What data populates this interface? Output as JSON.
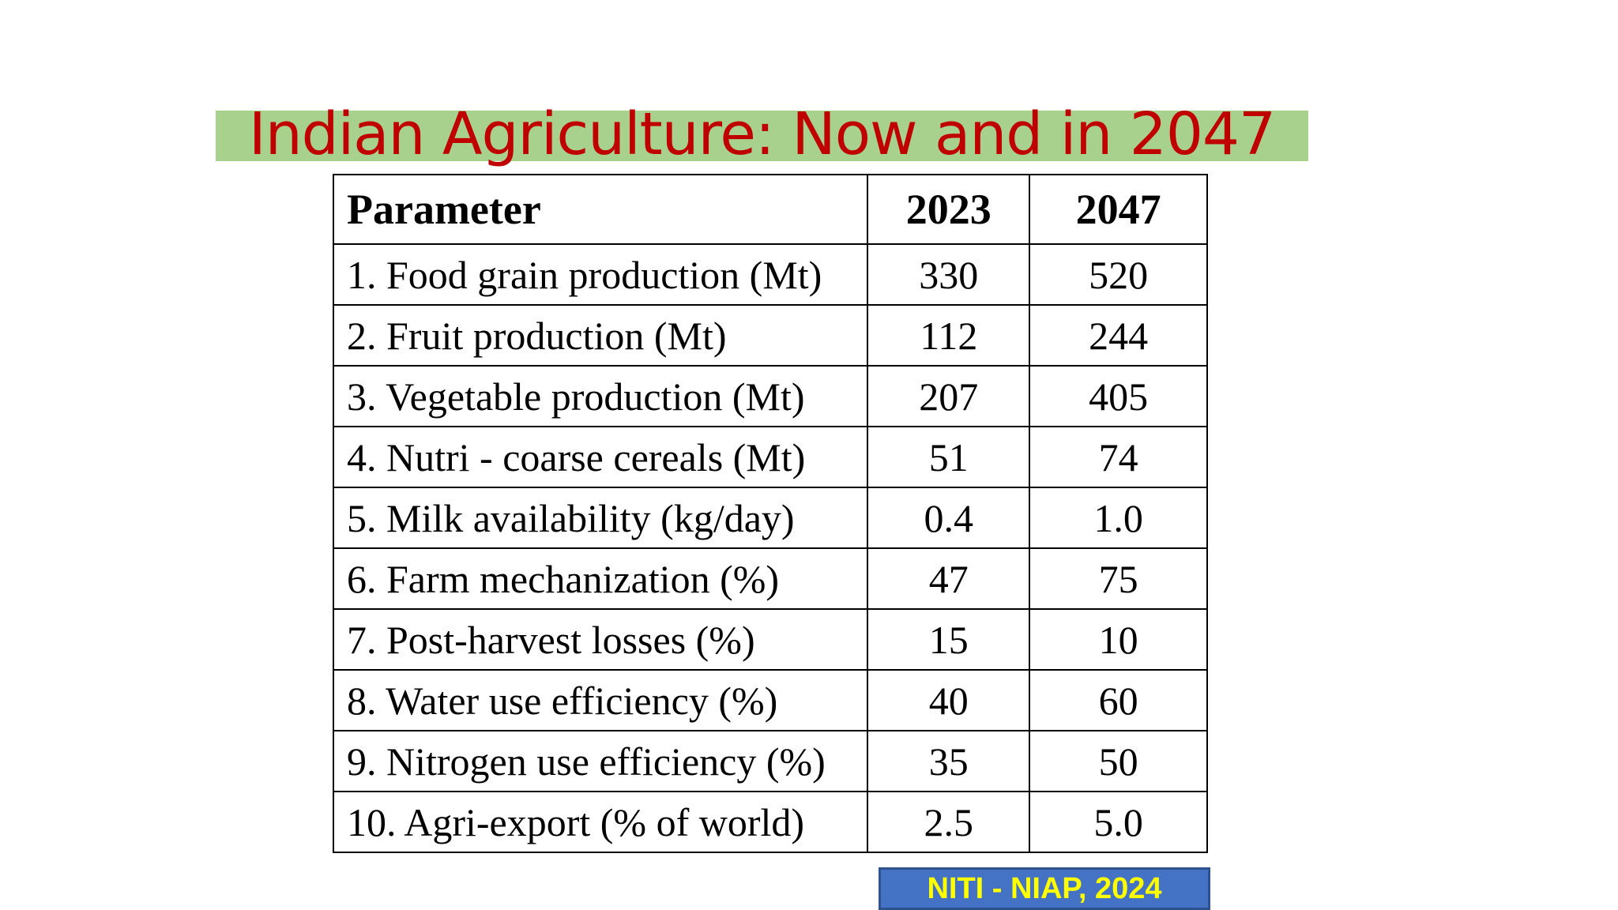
{
  "slide": {
    "title": "Indian Agriculture: Now and in 2047",
    "source": "NITI - NIAP, 2024"
  },
  "table": {
    "headers": [
      "Parameter",
      "2023",
      "2047"
    ],
    "rows": [
      [
        "1. Food grain production (Mt)",
        "330",
        "520"
      ],
      [
        "2. Fruit production (Mt)",
        "112",
        "244"
      ],
      [
        "3. Vegetable production (Mt)",
        "207",
        "405"
      ],
      [
        "4. Nutri - coarse cereals (Mt)",
        "51",
        "74"
      ],
      [
        "5. Milk availability (kg/day)",
        "0.4",
        "1.0"
      ],
      [
        "6. Farm mechanization (%)",
        "47",
        "75"
      ],
      [
        "7. Post-harvest losses (%)",
        "15",
        "10"
      ],
      [
        "8. Water use efficiency (%)",
        "40",
        "60"
      ],
      [
        "9. Nitrogen use efficiency (%)",
        "35",
        "50"
      ],
      [
        "10. Agri-export (% of world)",
        "2.5",
        "5.0"
      ]
    ]
  },
  "colors": {
    "title_text": "#c00000",
    "title_band": "#a9d18e",
    "source_bg": "#4472c4",
    "source_text": "#ffff00"
  }
}
